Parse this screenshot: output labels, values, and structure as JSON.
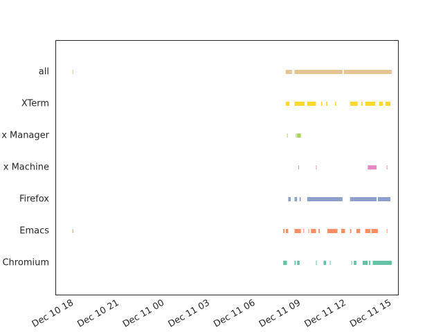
{
  "chart_data": {
    "type": "timeline",
    "title": "",
    "xlabel": "",
    "ylabel": "",
    "x_ticks": [
      "Dec 10 18",
      "Dec 10 21",
      "Dec 11 00",
      "Dec 11 03",
      "Dec 11 06",
      "Dec 11 09",
      "Dec 11 12",
      "Dec 11 15"
    ],
    "x_range": [
      "Dec 10 17:00",
      "Dec 11 15:35"
    ],
    "grid": false,
    "legend": "none",
    "categories": [
      "all",
      "XTerm",
      "x Manager",
      "x Machine",
      "Firefox",
      "Emacs",
      "Chromium"
    ],
    "series": [
      {
        "category": "all",
        "color": "#e5c494",
        "intervals": [
          [
            "Dec 10 18:05",
            "Dec 10 18:06"
          ],
          [
            "Dec 11 08:10",
            "Dec 11 08:35"
          ],
          [
            "Dec 11 08:45",
            "Dec 11 11:55"
          ],
          [
            "Dec 11 12:00",
            "Dec 11 15:10"
          ]
        ]
      },
      {
        "category": "XTerm",
        "color": "#ffd92f",
        "intervals": [
          [
            "Dec 11 08:10",
            "Dec 11 08:25"
          ],
          [
            "Dec 11 08:45",
            "Dec 11 09:25"
          ],
          [
            "Dec 11 09:35",
            "Dec 11 10:10"
          ],
          [
            "Dec 11 10:30",
            "Dec 11 10:35"
          ],
          [
            "Dec 11 10:50",
            "Dec 11 10:55"
          ],
          [
            "Dec 11 11:25",
            "Dec 11 11:30"
          ],
          [
            "Dec 11 12:25",
            "Dec 11 12:55"
          ],
          [
            "Dec 11 13:10",
            "Dec 11 13:15"
          ],
          [
            "Dec 11 13:25",
            "Dec 11 14:05"
          ],
          [
            "Dec 11 14:20",
            "Dec 11 14:35"
          ],
          [
            "Dec 11 14:45",
            "Dec 11 15:05"
          ]
        ]
      },
      {
        "category": "x Manager",
        "color": "#a6d854",
        "intervals": [
          [
            "Dec 11 08:15",
            "Dec 11 08:16"
          ],
          [
            "Dec 11 08:50",
            "Dec 11 08:51"
          ],
          [
            "Dec 11 08:55",
            "Dec 11 09:10"
          ]
        ]
      },
      {
        "category": "x Machine",
        "color": "#e78ac3",
        "intervals": [
          [
            "Dec 11 09:00",
            "Dec 11 09:02"
          ],
          [
            "Dec 11 10:10",
            "Dec 11 10:12"
          ],
          [
            "Dec 11 13:35",
            "Dec 11 14:10"
          ],
          [
            "Dec 11 14:50",
            "Dec 11 14:52"
          ]
        ]
      },
      {
        "category": "Firefox",
        "color": "#8da0cb",
        "intervals": [
          [
            "Dec 11 08:20",
            "Dec 11 08:30"
          ],
          [
            "Dec 11 08:45",
            "Dec 11 08:55"
          ],
          [
            "Dec 11 09:05",
            "Dec 11 09:10"
          ],
          [
            "Dec 11 09:35",
            "Dec 11 11:55"
          ],
          [
            "Dec 11 12:25",
            "Dec 11 14:10"
          ],
          [
            "Dec 11 14:15",
            "Dec 11 15:05"
          ]
        ]
      },
      {
        "category": "Emacs",
        "color": "#fc8d62",
        "intervals": [
          [
            "Dec 10 18:05",
            "Dec 10 18:06"
          ],
          [
            "Dec 11 08:00",
            "Dec 11 08:05"
          ],
          [
            "Dec 11 08:10",
            "Dec 11 08:20"
          ],
          [
            "Dec 11 08:45",
            "Dec 11 09:10"
          ],
          [
            "Dec 11 09:20",
            "Dec 11 09:22"
          ],
          [
            "Dec 11 09:40",
            "Dec 11 09:42"
          ],
          [
            "Dec 11 09:50",
            "Dec 11 10:10"
          ],
          [
            "Dec 11 10:20",
            "Dec 11 10:25"
          ],
          [
            "Dec 11 10:55",
            "Dec 11 11:35"
          ],
          [
            "Dec 11 11:50",
            "Dec 11 12:05"
          ],
          [
            "Dec 11 12:25",
            "Dec 11 12:30"
          ],
          [
            "Dec 11 12:50",
            "Dec 11 13:05"
          ],
          [
            "Dec 11 13:25",
            "Dec 11 13:45"
          ],
          [
            "Dec 11 13:50",
            "Dec 11 14:15"
          ],
          [
            "Dec 11 14:50",
            "Dec 11 14:52"
          ]
        ]
      },
      {
        "category": "Chromium",
        "color": "#66c2a5",
        "intervals": [
          [
            "Dec 11 08:00",
            "Dec 11 08:15"
          ],
          [
            "Dec 11 08:45",
            "Dec 11 08:50"
          ],
          [
            "Dec 11 08:55",
            "Dec 11 09:05"
          ],
          [
            "Dec 11 10:10",
            "Dec 11 10:12"
          ],
          [
            "Dec 11 10:40",
            "Dec 11 10:50"
          ],
          [
            "Dec 11 11:05",
            "Dec 11 11:07"
          ],
          [
            "Dec 11 12:30",
            "Dec 11 12:32"
          ],
          [
            "Dec 11 12:40",
            "Dec 11 12:50"
          ],
          [
            "Dec 11 13:15",
            "Dec 11 13:35"
          ],
          [
            "Dec 11 13:40",
            "Dec 11 13:45"
          ],
          [
            "Dec 11 13:55",
            "Dec 11 15:10"
          ]
        ]
      }
    ]
  }
}
